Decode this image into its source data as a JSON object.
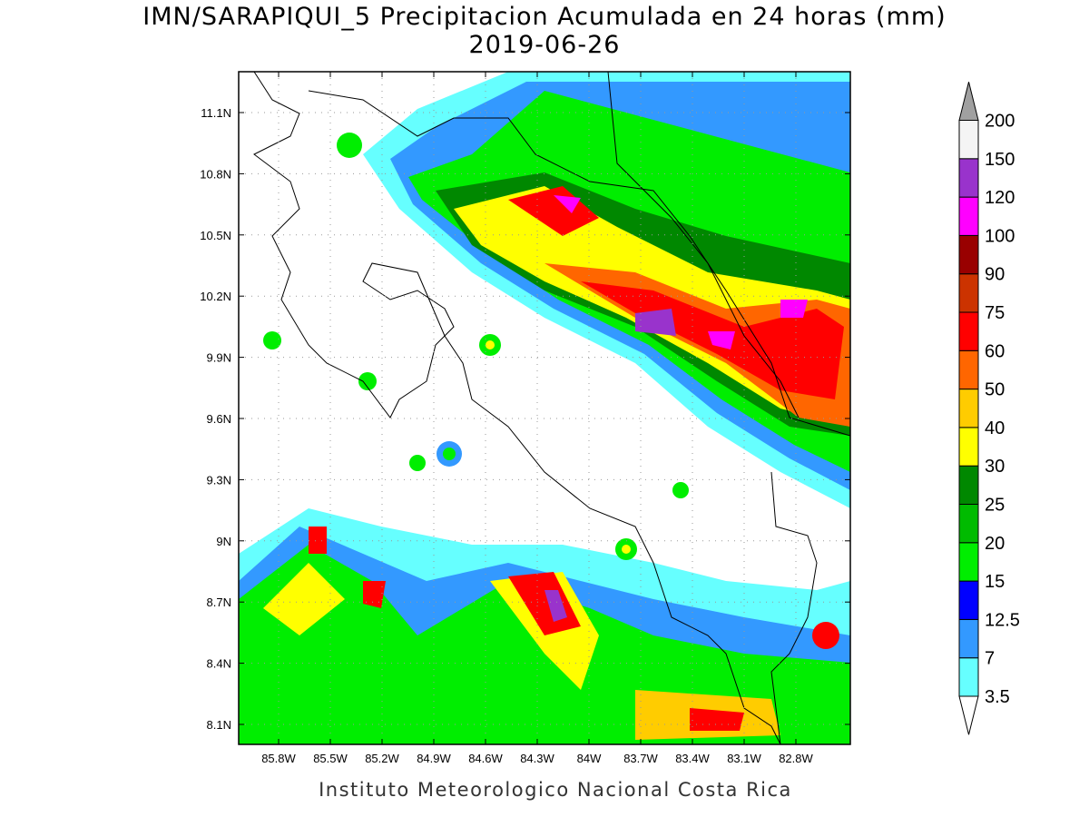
{
  "map": {
    "title": "IMN/SARAPIQUI_5 Precipitacion Acumulada en 24 horas (mm)",
    "subtitle": "2019-06-26",
    "lat_ticks": [
      "11.1N",
      "10.8N",
      "10.5N",
      "10.2N",
      "9.9N",
      "9.6N",
      "9.3N",
      "9N",
      "8.7N",
      "8.4N",
      "8.1N"
    ],
    "lon_ticks": [
      "85.8W",
      "85.5W",
      "85.2W",
      "84.9W",
      "84.6W",
      "84.3W",
      "84W",
      "83.7W",
      "83.4W",
      "83.1W",
      "82.8W"
    ],
    "footer": "Instituto Meteorologico Nacional Costa Rica"
  },
  "colorbar": {
    "levels": [
      3.5,
      7,
      12.5,
      15,
      20,
      25,
      30,
      40,
      50,
      60,
      75,
      90,
      100,
      120,
      150,
      200
    ],
    "colors": [
      "#ffffff",
      "#66ffff",
      "#3399ff",
      "#0000ff",
      "#00ee00",
      "#00bb00",
      "#008800",
      "#ffff00",
      "#ffcc00",
      "#ff6600",
      "#ff0000",
      "#cc3300",
      "#990000",
      "#ff00ff",
      "#9933cc",
      "#f4f4f4",
      "#a0a0a0"
    ]
  }
}
